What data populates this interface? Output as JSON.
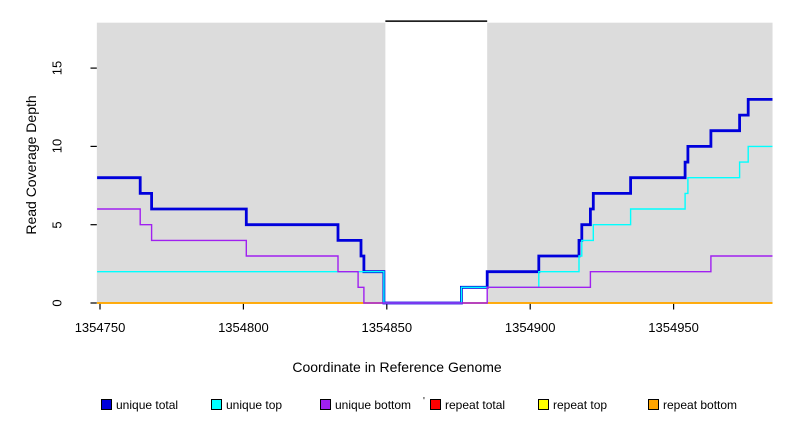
{
  "figure_title": "",
  "axes": {
    "x_title": "Coordinate in Reference Genome",
    "y_title": "Read Coverage Depth"
  },
  "legend": {
    "stray_mark": "'"
  },
  "chart_data": {
    "type": "line",
    "subtype": "step-coverage",
    "title": "",
    "xlabel": "Coordinate in Reference Genome",
    "ylabel": "Read Coverage Depth",
    "xlim": [
      1354748.9,
      1354984.5
    ],
    "ylim": [
      0,
      17.9
    ],
    "grid": false,
    "legend_position": "bottom",
    "colors": {
      "panel_background": "#DCDCDC",
      "gap_background": "#FFFFFF",
      "gap_top_line": "#000000",
      "axis_text": "#000000"
    },
    "x_ticks": [
      {
        "value": 1354750,
        "label": "1354750"
      },
      {
        "value": 1354800,
        "label": "1354800"
      },
      {
        "value": 1354850,
        "label": "1354850"
      },
      {
        "value": 1354900,
        "label": "1354900"
      },
      {
        "value": 1354950,
        "label": "1354950"
      }
    ],
    "y_ticks": [
      {
        "value": 0,
        "label": "0"
      },
      {
        "value": 5,
        "label": "5"
      },
      {
        "value": 10,
        "label": "10"
      },
      {
        "value": 15,
        "label": "15"
      }
    ],
    "shaded_regions": [
      {
        "x0": 1354748.9,
        "x1": 1354849.5
      },
      {
        "x0": 1354885.0,
        "x1": 1354984.5
      }
    ],
    "gap_region": {
      "x0": 1354849.5,
      "x1": 1354885.0,
      "top_value": 18
    },
    "draw_order": [
      3,
      4,
      5,
      0,
      1,
      2
    ],
    "series": [
      {
        "name": "unique total",
        "color": "#0000DC",
        "width": 2.8,
        "steps": [
          [
            1354749,
            8
          ],
          [
            1354764,
            7
          ],
          [
            1354768,
            6
          ],
          [
            1354801,
            5
          ],
          [
            1354833,
            4
          ],
          [
            1354841,
            3
          ],
          [
            1354842,
            2
          ],
          [
            1354849,
            0
          ],
          [
            1354876,
            1
          ],
          [
            1354885,
            2
          ],
          [
            1354903,
            3
          ],
          [
            1354917,
            4
          ],
          [
            1354918,
            5
          ],
          [
            1354921,
            6
          ],
          [
            1354922,
            7
          ],
          [
            1354935,
            8
          ],
          [
            1354954,
            9
          ],
          [
            1354955,
            10
          ],
          [
            1354963,
            11
          ],
          [
            1354973,
            12
          ],
          [
            1354976,
            13
          ]
        ]
      },
      {
        "name": "unique top",
        "color": "#00FFFF",
        "width": 1.4,
        "steps": [
          [
            1354749,
            2
          ],
          [
            1354849,
            0
          ],
          [
            1354876,
            1
          ],
          [
            1354903,
            2
          ],
          [
            1354917,
            3
          ],
          [
            1354918,
            4
          ],
          [
            1354922,
            5
          ],
          [
            1354935,
            6
          ],
          [
            1354954,
            7
          ],
          [
            1354955,
            8
          ],
          [
            1354973,
            9
          ],
          [
            1354976,
            10
          ]
        ]
      },
      {
        "name": "unique bottom",
        "color": "#A020F0",
        "width": 1.4,
        "steps": [
          [
            1354749,
            6
          ],
          [
            1354764,
            5
          ],
          [
            1354768,
            4
          ],
          [
            1354801,
            3
          ],
          [
            1354833,
            2
          ],
          [
            1354840,
            1
          ],
          [
            1354842,
            0
          ],
          [
            1354885,
            1
          ],
          [
            1354921,
            2
          ],
          [
            1354963,
            3
          ]
        ]
      },
      {
        "name": "repeat total",
        "color": "#FF0000",
        "width": 1.4,
        "steps": [
          [
            1354749,
            0
          ]
        ]
      },
      {
        "name": "repeat top",
        "color": "#FFFF00",
        "width": 1.4,
        "steps": [
          [
            1354749,
            0
          ]
        ]
      },
      {
        "name": "repeat bottom",
        "color": "#FFA500",
        "width": 1.4,
        "steps": [
          [
            1354749,
            0
          ]
        ]
      }
    ]
  }
}
